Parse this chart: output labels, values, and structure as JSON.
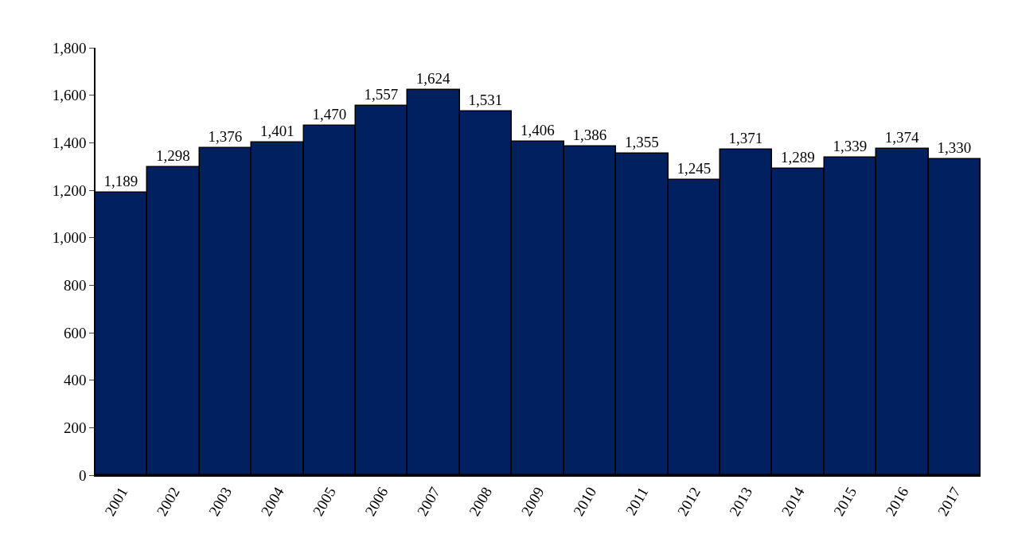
{
  "chart_data": {
    "type": "bar",
    "categories": [
      "2001",
      "2002",
      "2003",
      "2004",
      "2005",
      "2006",
      "2007",
      "2008",
      "2009",
      "2010",
      "2011",
      "2012",
      "2013",
      "2014",
      "2015",
      "2016",
      "2017"
    ],
    "values": [
      1189,
      1298,
      1376,
      1401,
      1470,
      1557,
      1624,
      1531,
      1406,
      1386,
      1355,
      1245,
      1371,
      1289,
      1339,
      1374,
      1330
    ],
    "value_labels": [
      "1,189",
      "1,298",
      "1,376",
      "1,401",
      "1,470",
      "1,557",
      "1,624",
      "1,531",
      "1,406",
      "1,386",
      "1,355",
      "1,245",
      "1,371",
      "1,289",
      "1,339",
      "1,374",
      "1,330"
    ],
    "color": "#002060",
    "ylim": [
      0,
      1800
    ],
    "yticks": [
      0,
      200,
      400,
      600,
      800,
      {
        "value": 1000,
        "label": "1,000"
      },
      {
        "value": 1200,
        "label": "1,200"
      },
      {
        "value": 1400,
        "label": "1,400"
      },
      {
        "value": 1600,
        "label": "1,600"
      },
      {
        "value": 1800,
        "label": "1,800"
      }
    ],
    "grid": false,
    "legend": false
  }
}
